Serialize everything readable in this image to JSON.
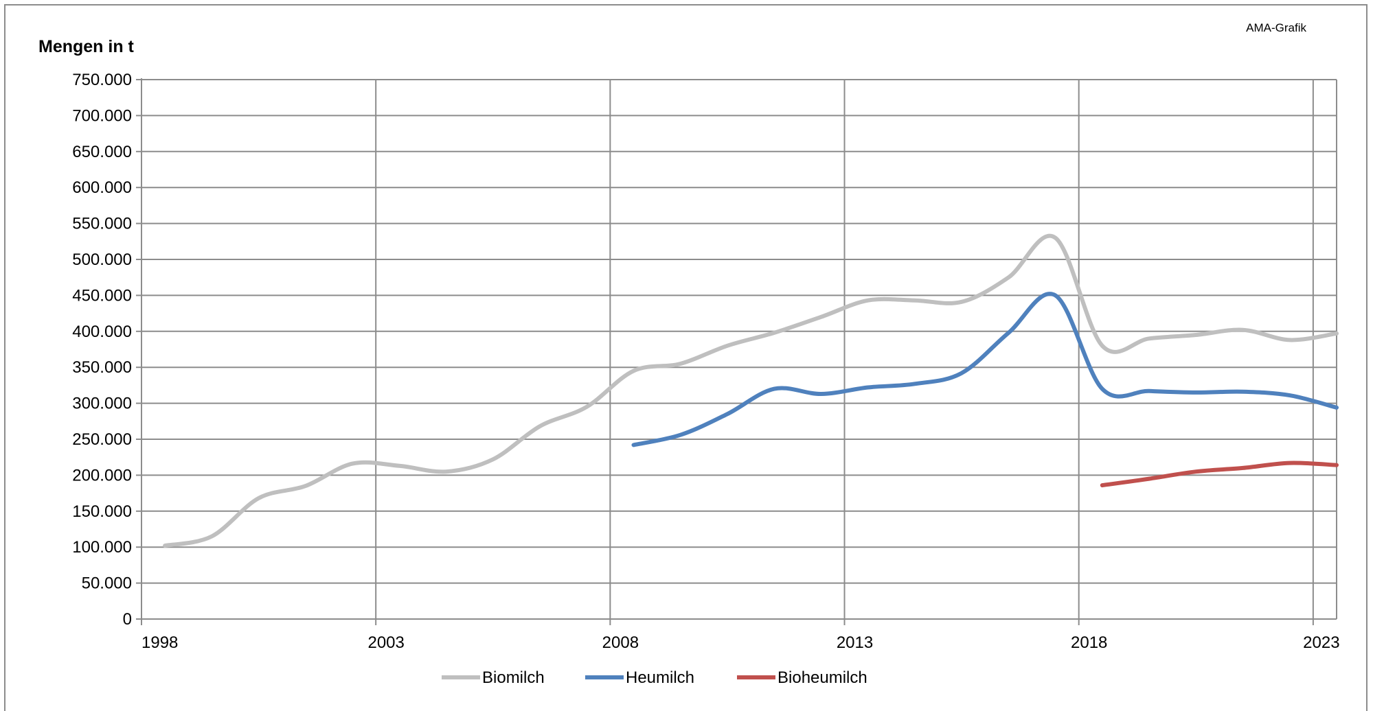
{
  "source_label": "AMA-Grafik",
  "chart_data": {
    "type": "line",
    "ylabel": "Mengen in t",
    "xlabel": "",
    "title": "",
    "xlim": [
      1998,
      2023.5
    ],
    "ylim": [
      0,
      750000
    ],
    "grid": true,
    "legend_position": "bottom-center",
    "x_ticks": [
      1998,
      2003,
      2008,
      2013,
      2018,
      2023
    ],
    "x_tick_labels": [
      "1998",
      "2003",
      "2008",
      "2013",
      "2018",
      "2023"
    ],
    "y_ticks": [
      0,
      50000,
      100000,
      150000,
      200000,
      250000,
      300000,
      350000,
      400000,
      450000,
      500000,
      550000,
      600000,
      650000,
      700000,
      750000
    ],
    "y_tick_labels": [
      "0",
      "50.000",
      "100.000",
      "150.000",
      "200.000",
      "250.000",
      "300.000",
      "350.000",
      "400.000",
      "450.000",
      "500.000",
      "550.000",
      "600.000",
      "650.000",
      "700.000",
      "750.000"
    ],
    "series": [
      {
        "name": "Biomilch",
        "color": "#bfbfbf",
        "x": [
          1998.5,
          1999.5,
          2000.5,
          2001.5,
          2002.5,
          2003.5,
          2004.5,
          2005.5,
          2006.5,
          2007.5,
          2008.5,
          2009.5,
          2010.5,
          2011.5,
          2012.5,
          2013.5,
          2014.5,
          2015.5,
          2016.5,
          2017.5,
          2018.5,
          2019.5,
          2020.5,
          2021.5,
          2022.5,
          2023.5
        ],
        "values": [
          102000,
          115000,
          168000,
          185000,
          216000,
          213000,
          205000,
          222000,
          268000,
          295000,
          345000,
          355000,
          380000,
          398000,
          420000,
          443000,
          443000,
          441000,
          475000,
          530000,
          380000,
          390000,
          395000,
          402000,
          388000,
          397000
        ]
      },
      {
        "name": "Heumilch",
        "color": "#4f81bd",
        "x": [
          2008.5,
          2009.5,
          2010.5,
          2011.5,
          2012.5,
          2013.5,
          2014.5,
          2015.5,
          2016.5,
          2017.5,
          2018.5,
          2019.5,
          2020.5,
          2021.5,
          2022.5,
          2023.5
        ],
        "values": [
          242000,
          256000,
          285000,
          320000,
          313000,
          322000,
          327000,
          342000,
          398000,
          450000,
          320000,
          317000,
          315000,
          316000,
          311000,
          294000
        ]
      },
      {
        "name": "Bioheumilch",
        "color": "#c0504d",
        "x": [
          2018.5,
          2019.5,
          2020.5,
          2021.5,
          2022.5,
          2023.5
        ],
        "values": [
          186000,
          195000,
          205000,
          210000,
          217000,
          214000
        ]
      }
    ]
  }
}
